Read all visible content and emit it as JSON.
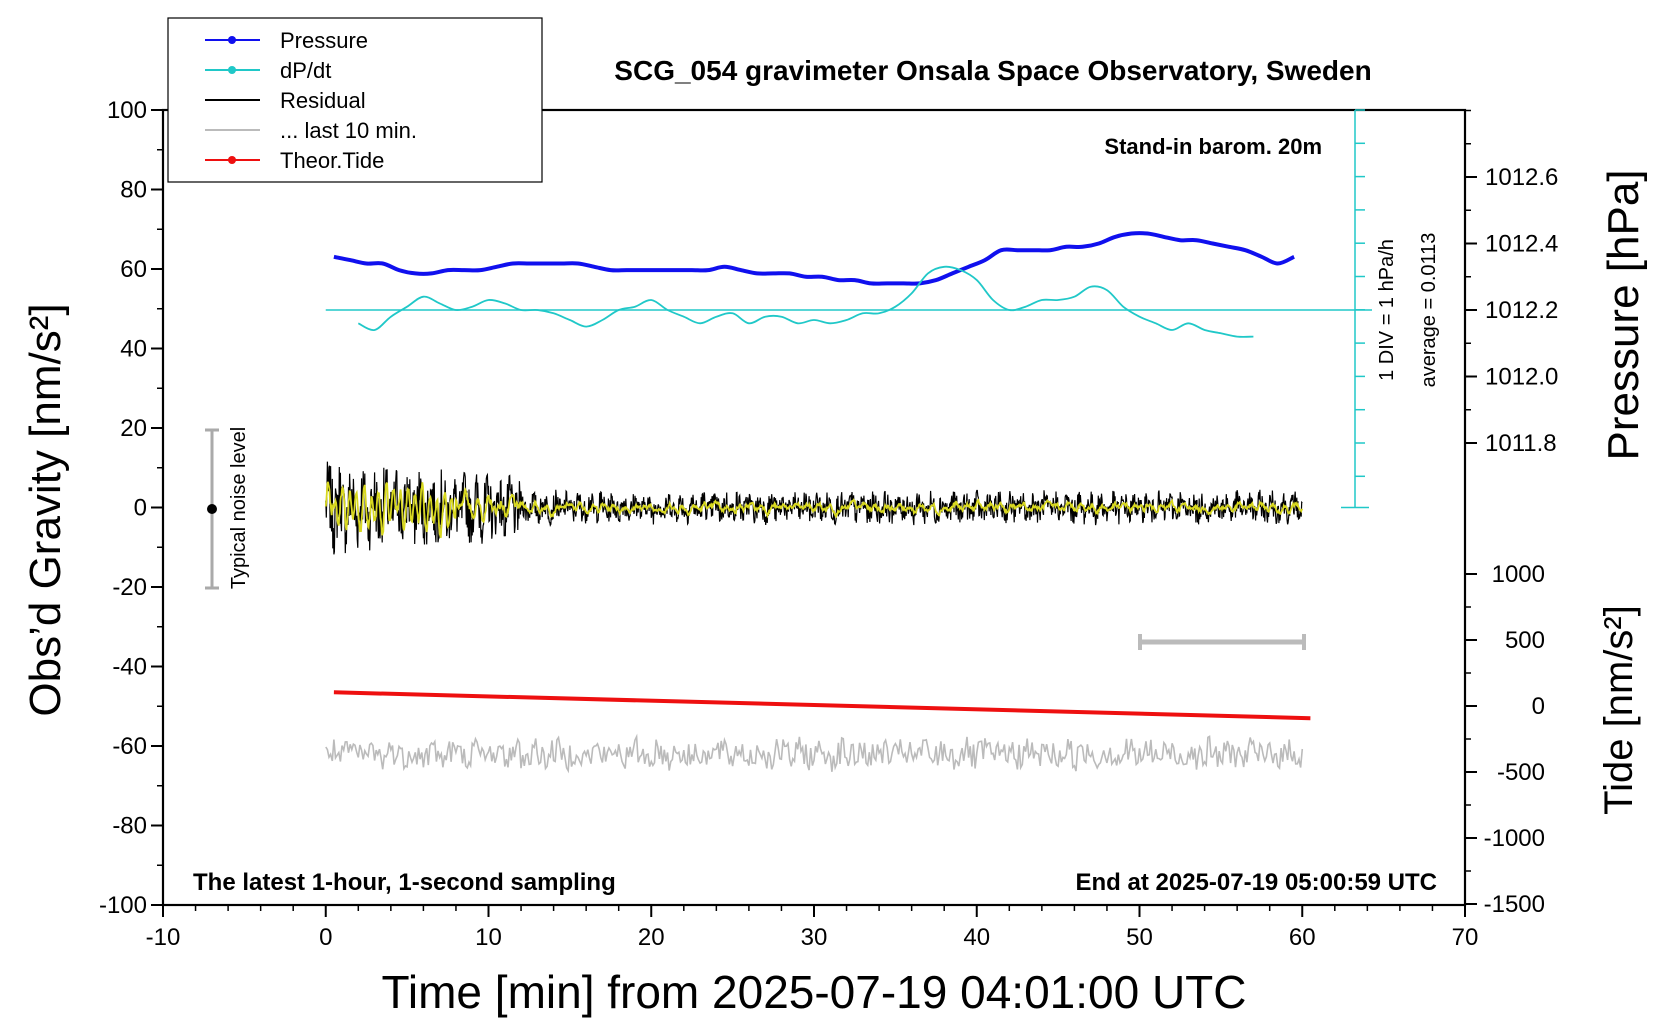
{
  "chart_data": {
    "type": "line",
    "title": "SCG_054 gravimeter Onsala Space Observatory, Sweden",
    "xlabel": "Time [min] from 2025-07-19 04:01:00 UTC",
    "ylabel_left": "Obs’d Gravity [nm/s²]",
    "ylabel_right_pressure": "Pressure [hPa]",
    "ylabel_right_tide": "Tide [nm/s²]",
    "xlim": [
      -10,
      70
    ],
    "ylim": [
      -100,
      100
    ],
    "x_ticks": [
      -10,
      0,
      10,
      20,
      30,
      40,
      50,
      60,
      70
    ],
    "y_ticks": [
      100,
      80,
      60,
      40,
      20,
      0,
      -20,
      -40,
      -60,
      -80,
      -100
    ],
    "pressure_ticks": [
      "1012.6",
      "1012.4",
      "1012.2",
      "1012.0",
      "1011.8"
    ],
    "pressure_tick_values": [
      1012.6,
      1012.4,
      1012.2,
      1012.0,
      1011.8
    ],
    "tide_ticks": [
      "1000",
      "500",
      "0",
      "-500",
      "-1000",
      "-1500"
    ],
    "tide_tick_values": [
      1000,
      500,
      0,
      -500,
      -1000,
      -1500
    ],
    "annotations": {
      "stand_in": "Stand-in barom. 20m",
      "div": "1 DIV = 1 hPa/h",
      "average": "average = 0.0113",
      "noise": "Typical noise level",
      "latest": "The latest 1-hour, 1-second sampling",
      "end": "End at 2025-07-19 05:00:59 UTC"
    },
    "legend_position": "top-left",
    "legend": [
      {
        "name": "Pressure",
        "color": "#1010ee",
        "marker": true
      },
      {
        "name": "dP/dt",
        "color": "#20c8c8",
        "marker": true
      },
      {
        "name": "Residual",
        "color": "#000000",
        "marker": false
      },
      {
        "name": "... last 10 min.",
        "color": "#bbbbbb",
        "marker": false
      },
      {
        "name": "Theor.Tide",
        "color": "#ee1010",
        "marker": true
      }
    ],
    "series": [
      {
        "name": "Pressure",
        "color": "#1010ee",
        "axis": "pressure_hPa",
        "points": [
          [
            0.5,
            1012.36
          ],
          [
            1.5,
            1012.35
          ],
          [
            2.5,
            1012.34
          ],
          [
            3.5,
            1012.34
          ],
          [
            4.5,
            1012.32
          ],
          [
            5.5,
            1012.31
          ],
          [
            6.5,
            1012.31
          ],
          [
            7.5,
            1012.32
          ],
          [
            8.5,
            1012.32
          ],
          [
            9.5,
            1012.32
          ],
          [
            10.5,
            1012.33
          ],
          [
            11.5,
            1012.34
          ],
          [
            12.5,
            1012.34
          ],
          [
            13.5,
            1012.34
          ],
          [
            14.5,
            1012.34
          ],
          [
            15.5,
            1012.34
          ],
          [
            16.5,
            1012.33
          ],
          [
            17.5,
            1012.32
          ],
          [
            18.5,
            1012.32
          ],
          [
            19.5,
            1012.32
          ],
          [
            20.5,
            1012.32
          ],
          [
            21.5,
            1012.32
          ],
          [
            22.5,
            1012.32
          ],
          [
            23.5,
            1012.32
          ],
          [
            24.5,
            1012.33
          ],
          [
            25.5,
            1012.32
          ],
          [
            26.5,
            1012.31
          ],
          [
            27.5,
            1012.31
          ],
          [
            28.5,
            1012.31
          ],
          [
            29.5,
            1012.3
          ],
          [
            30.5,
            1012.3
          ],
          [
            31.5,
            1012.29
          ],
          [
            32.5,
            1012.29
          ],
          [
            33.5,
            1012.28
          ],
          [
            34.5,
            1012.28
          ],
          [
            35.5,
            1012.28
          ],
          [
            36.5,
            1012.28
          ],
          [
            37.5,
            1012.29
          ],
          [
            38.5,
            1012.31
          ],
          [
            39.5,
            1012.33
          ],
          [
            40.5,
            1012.35
          ],
          [
            41.5,
            1012.38
          ],
          [
            42.5,
            1012.38
          ],
          [
            43.5,
            1012.38
          ],
          [
            44.5,
            1012.38
          ],
          [
            45.5,
            1012.39
          ],
          [
            46.5,
            1012.39
          ],
          [
            47.5,
            1012.4
          ],
          [
            48.5,
            1012.42
          ],
          [
            49.5,
            1012.43
          ],
          [
            50.5,
            1012.43
          ],
          [
            51.5,
            1012.42
          ],
          [
            52.5,
            1012.41
          ],
          [
            53.5,
            1012.41
          ],
          [
            54.5,
            1012.4
          ],
          [
            55.5,
            1012.39
          ],
          [
            56.5,
            1012.38
          ],
          [
            57.5,
            1012.36
          ],
          [
            58.5,
            1012.34
          ],
          [
            59.5,
            1012.36
          ]
        ]
      },
      {
        "name": "dP/dt",
        "color": "#20c8c8",
        "axis": "pressure_hPa",
        "points": [
          [
            2,
            1012.16
          ],
          [
            3,
            1012.14
          ],
          [
            4,
            1012.18
          ],
          [
            5,
            1012.21
          ],
          [
            6,
            1012.24
          ],
          [
            7,
            1012.22
          ],
          [
            8,
            1012.2
          ],
          [
            9,
            1012.21
          ],
          [
            10,
            1012.23
          ],
          [
            11,
            1012.22
          ],
          [
            12,
            1012.2
          ],
          [
            13,
            1012.2
          ],
          [
            14,
            1012.19
          ],
          [
            15,
            1012.17
          ],
          [
            16,
            1012.15
          ],
          [
            17,
            1012.17
          ],
          [
            18,
            1012.2
          ],
          [
            19,
            1012.21
          ],
          [
            20,
            1012.23
          ],
          [
            21,
            1012.2
          ],
          [
            22,
            1012.18
          ],
          [
            23,
            1012.16
          ],
          [
            24,
            1012.18
          ],
          [
            25,
            1012.19
          ],
          [
            26,
            1012.16
          ],
          [
            27,
            1012.18
          ],
          [
            28,
            1012.18
          ],
          [
            29,
            1012.16
          ],
          [
            30,
            1012.17
          ],
          [
            31,
            1012.16
          ],
          [
            32,
            1012.17
          ],
          [
            33,
            1012.19
          ],
          [
            34,
            1012.19
          ],
          [
            35,
            1012.21
          ],
          [
            36,
            1012.25
          ],
          [
            37,
            1012.31
          ],
          [
            38,
            1012.33
          ],
          [
            39,
            1012.32
          ],
          [
            40,
            1012.29
          ],
          [
            41,
            1012.23
          ],
          [
            42,
            1012.2
          ],
          [
            43,
            1012.21
          ],
          [
            44,
            1012.23
          ],
          [
            45,
            1012.23
          ],
          [
            46,
            1012.24
          ],
          [
            47,
            1012.27
          ],
          [
            48,
            1012.26
          ],
          [
            49,
            1012.21
          ],
          [
            50,
            1012.18
          ],
          [
            51,
            1012.16
          ],
          [
            52,
            1012.14
          ],
          [
            53,
            1012.16
          ],
          [
            54,
            1012.14
          ],
          [
            55,
            1012.13
          ],
          [
            56,
            1012.12
          ],
          [
            57,
            1012.12
          ]
        ]
      },
      {
        "name": "Residual",
        "color": "#000000",
        "axis": "gravity",
        "x_range": [
          0,
          60
        ],
        "y_range": [
          -12,
          12
        ]
      },
      {
        "name": "... last 10 min.",
        "color": "#bbbbbb",
        "axis": "gravity",
        "x_range": [
          0,
          60
        ],
        "y_range": [
          -67,
          -57
        ]
      },
      {
        "name": "Theor.Tide",
        "color": "#ee1010",
        "axis": "gravity",
        "points": [
          [
            0.5,
            -46.5
          ],
          [
            60.5,
            -53
          ]
        ]
      }
    ]
  }
}
